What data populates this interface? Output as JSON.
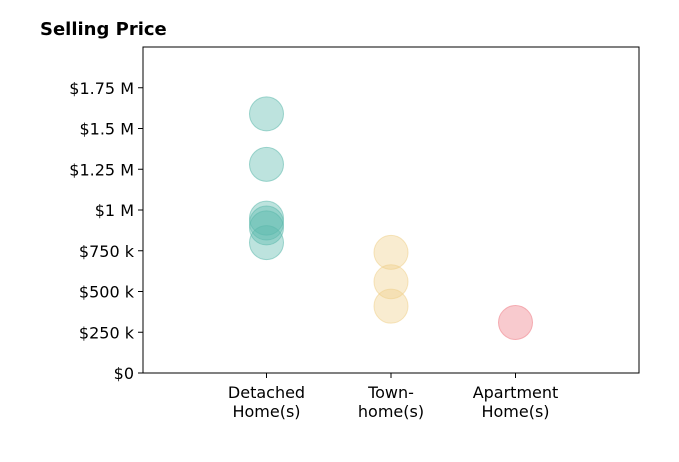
{
  "chart_data": {
    "type": "scatter",
    "title": "Selling Price",
    "xlabel": "",
    "ylabel": "",
    "categories": [
      [
        "Detached",
        "Home(s)"
      ],
      [
        "Town-",
        "home(s)"
      ],
      [
        "Apartment",
        "Home(s)"
      ]
    ],
    "yticks": [
      {
        "value": 0,
        "label": "$0"
      },
      {
        "value": 250000,
        "label": "$250 k"
      },
      {
        "value": 500000,
        "label": "$500 k"
      },
      {
        "value": 750000,
        "label": "$750 k"
      },
      {
        "value": 1000000,
        "label": "$1 M"
      },
      {
        "value": 1250000,
        "label": "$1.25 M"
      },
      {
        "value": 1500000,
        "label": "$1.5 M"
      },
      {
        "value": 1750000,
        "label": "$1.75 M"
      }
    ],
    "ylim": [
      0,
      2000000
    ],
    "grid": false,
    "series": [
      {
        "category_index": 0,
        "color": "#5BB8AC",
        "values": [
          1590000,
          1280000,
          950000,
          920000,
          890000,
          800000
        ]
      },
      {
        "category_index": 1,
        "color": "#EFD08A",
        "values": [
          740000,
          560000,
          410000
        ]
      },
      {
        "category_index": 2,
        "color": "#EE7B85",
        "values": [
          310000
        ]
      }
    ]
  }
}
